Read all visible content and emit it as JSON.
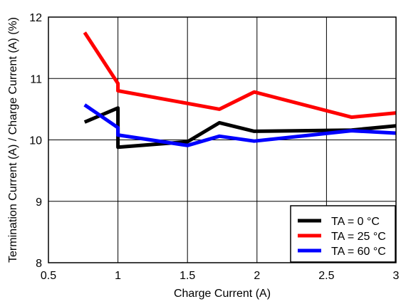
{
  "chart_data": {
    "type": "line",
    "title": "",
    "xlabel": "Charge Current (A)",
    "ylabel": "Termination Current (A) / Charge Current (A) (%)",
    "xlim": [
      0.5,
      3
    ],
    "ylim": [
      8,
      12
    ],
    "xticks": [
      0.5,
      1,
      1.5,
      2,
      2.5,
      3
    ],
    "yticks": [
      8,
      9,
      10,
      11,
      12
    ],
    "xtick_labels": [
      "0.5",
      "1",
      "1.5",
      "2",
      "2.5",
      "3"
    ],
    "ytick_labels": [
      "8",
      "9",
      "10",
      "11",
      "12"
    ],
    "grid": true,
    "legend_position": "bottom-right",
    "series": [
      {
        "name": "TA = 0 °C",
        "color": "#000000",
        "x": [
          0.76,
          1.0,
          1.0,
          1.5,
          1.73,
          1.98,
          2.68,
          3.0
        ],
        "y": [
          10.29,
          10.52,
          9.88,
          9.97,
          10.28,
          10.14,
          10.16,
          10.23
        ]
      },
      {
        "name": "TA = 25 °C",
        "color": "#ff0000",
        "x": [
          0.76,
          1.0,
          1.0,
          1.73,
          1.98,
          2.68,
          3.0
        ],
        "y": [
          11.75,
          10.92,
          10.8,
          10.5,
          10.78,
          10.37,
          10.44
        ]
      },
      {
        "name": "TA = 60 °C",
        "color": "#0000ff",
        "x": [
          0.76,
          1.0,
          1.0,
          1.5,
          1.73,
          1.98,
          2.68,
          3.0
        ],
        "y": [
          10.57,
          10.2,
          10.08,
          9.91,
          10.06,
          9.98,
          10.15,
          10.11
        ]
      }
    ]
  }
}
